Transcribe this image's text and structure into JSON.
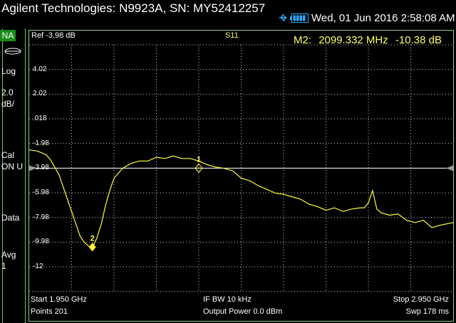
{
  "header": {
    "title": "Agilent Technologies: N9923A, SN: MY52412257",
    "datetime": "Wed, 01 Jun 2016 2:58:08 AM"
  },
  "sidebar": {
    "mode": "NA",
    "scale_type": "Log",
    "scale_value_line1": "2.0",
    "scale_value_line2": "dB/",
    "cal_line1": "Cal",
    "cal_line2": "ON U",
    "trace_label": "Data",
    "avg_line1": "Avg",
    "avg_line2": "1"
  },
  "plot": {
    "ref_text": "Ref -3.98 dB",
    "parameter": "S11",
    "marker_readout": {
      "name": "M2:",
      "freq": "2099.332 MHz",
      "value": "-10.38 dB"
    },
    "yticks": [
      "4.02",
      "2.02",
      ".018",
      "-1.98",
      "-3.98",
      "-5.98",
      "-7.98",
      "-9.98",
      "-12"
    ],
    "colors": {
      "trace": "#ffff33",
      "grid": "#c8c8c8",
      "frame": "#8c8c8c",
      "ref_line": "#ffffff"
    }
  },
  "footer": {
    "start": "Start 1.950 GHz",
    "points": "Points 201",
    "ifbw": "IF BW 10 kHz",
    "power": "Output Power 0.0 dBm",
    "stop": "Stop 2.950 GHz",
    "sweep": "Swp 178 ms"
  },
  "icons": {
    "usb": "usb-icon",
    "battery": "battery-icon"
  },
  "chart_data": {
    "type": "line",
    "x_unit": "GHz",
    "xlim": [
      1.95,
      2.95
    ],
    "ylim": [
      -14,
      6.02
    ],
    "ref_level": -3.98,
    "series": [
      {
        "x": [
          1.95,
          1.97,
          1.99,
          2.0,
          2.02,
          2.04,
          2.06,
          2.07,
          2.08,
          2.09,
          2.095,
          2.099,
          2.105,
          2.11,
          2.12,
          2.13,
          2.14,
          2.15,
          2.17,
          2.19,
          2.21,
          2.23,
          2.25,
          2.27,
          2.29,
          2.31,
          2.33,
          2.35,
          2.37,
          2.39,
          2.41,
          2.43,
          2.45,
          2.47,
          2.49,
          2.51,
          2.53,
          2.55,
          2.57,
          2.59,
          2.61,
          2.63,
          2.65,
          2.67,
          2.69,
          2.71,
          2.73,
          2.74,
          2.75,
          2.76,
          2.77,
          2.78,
          2.8,
          2.82,
          2.84,
          2.86,
          2.88,
          2.9,
          2.92,
          2.95
        ],
        "y": [
          -2.5,
          -2.6,
          -2.9,
          -3.3,
          -4.5,
          -6.5,
          -8.5,
          -9.5,
          -10.0,
          -10.3,
          -10.38,
          -10.38,
          -10.0,
          -9.6,
          -8.5,
          -7.0,
          -5.8,
          -4.8,
          -4.0,
          -3.6,
          -3.4,
          -3.4,
          -3.1,
          -3.2,
          -3.0,
          -3.2,
          -3.2,
          -3.4,
          -3.7,
          -3.9,
          -4.0,
          -4.2,
          -4.8,
          -5.0,
          -5.4,
          -5.7,
          -6.0,
          -6.1,
          -6.3,
          -6.5,
          -6.9,
          -7.1,
          -7.4,
          -7.2,
          -7.5,
          -7.3,
          -7.2,
          -7.2,
          -6.8,
          -5.8,
          -7.3,
          -7.6,
          -7.8,
          -7.7,
          -8.2,
          -8.4,
          -8.2,
          -8.8,
          -8.6,
          -8.4
        ]
      }
    ],
    "markers": [
      {
        "label": "1",
        "x": 2.35,
        "y": -3.98
      },
      {
        "label": "2",
        "x": 2.099,
        "y": -10.38
      }
    ]
  }
}
